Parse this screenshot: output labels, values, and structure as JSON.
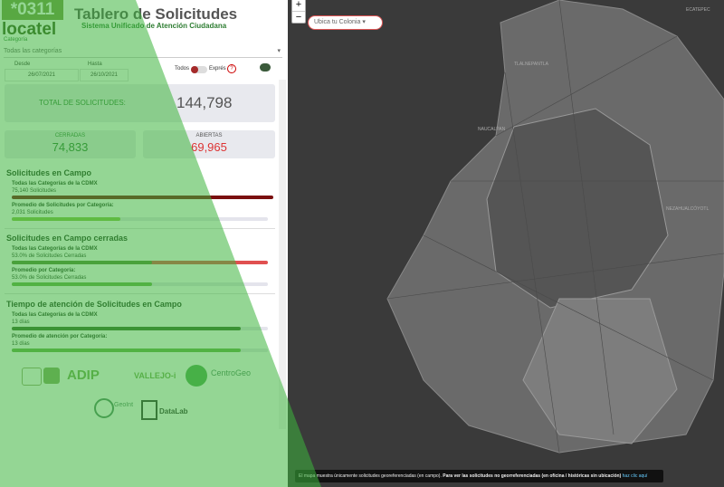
{
  "header": {
    "logo_code": "*0311",
    "logo_name": "locatel",
    "title": "Tablero de Solicitudes",
    "subtitle": "Sistema Unificado de Atención Ciudadana"
  },
  "filters": {
    "category_label": "Categoría",
    "category_value": "Todas las categorías",
    "from_label": "Desde",
    "from_value": "26/07/2021",
    "to_label": "Hasta",
    "to_value": "26/10/2021",
    "toggle_left": "Todos",
    "toggle_right": "Exprés",
    "help": "?"
  },
  "totals": {
    "total_label": "TOTAL DE SOLICITUDES:",
    "total_value": "144,798",
    "closed_label": "CERRADAS",
    "closed_value": "74,833",
    "open_label": "ABIERTAS",
    "open_value": "69,965"
  },
  "sections": [
    {
      "title": "Solicitudes en Campo",
      "rows": [
        {
          "label": "Todas las Categorías de la CDMX",
          "value": "75,140 Solicitudes"
        },
        {
          "label": "Promedio de Solicitudes por Categoría:",
          "value": "2,031 Solicitudes"
        }
      ]
    },
    {
      "title": "Solicitudes en Campo cerradas",
      "rows": [
        {
          "label": "Todas las Categorías de la CDMX",
          "value": "53.0% de Solicitudes Cerradas"
        },
        {
          "label": "Promedio por Categoría:",
          "value": "53.0% de Solicitudes Cerradas"
        }
      ]
    },
    {
      "title": "Tiempo de atención de Solicitudes en Campo",
      "rows": [
        {
          "label": "Todas las Categorías de la CDMX",
          "value": "13 días"
        },
        {
          "label": "Promedio de atención por Categoría:",
          "value": "13 días"
        }
      ]
    }
  ],
  "logos": [
    "ADIP",
    "VALLEJO-i",
    "CentroGeo",
    "GeoInt",
    "DataLab"
  ],
  "map": {
    "zoom_in": "+",
    "zoom_out": "−",
    "search": "Ubica tu Colonia",
    "places": [
      "ECATEPEC",
      "TLALNEPANTLA",
      "NAUCALPAN",
      "NEZAHUALCÓYOTL"
    ],
    "footer_note": "El mapa muestra únicamente solicitudes georeferenciadas (en campo).",
    "footer_bold": "Para ver las solicitudes no georreferenciadas (en oficina / históricas sin ubicación)",
    "footer_link": "haz clic aquí"
  }
}
